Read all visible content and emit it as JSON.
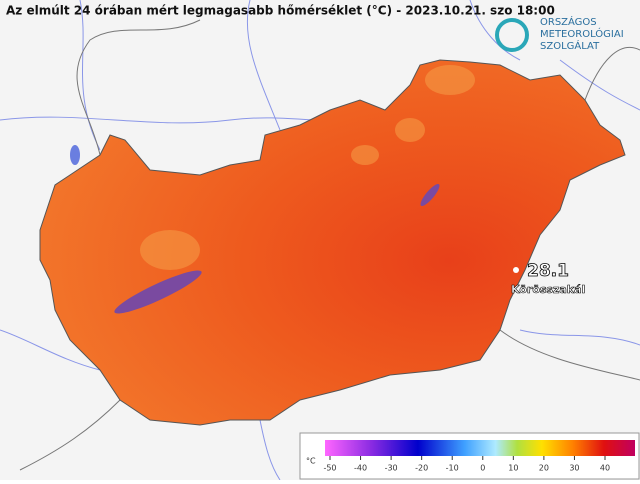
{
  "header": {
    "title": "Az elmúlt 24 órában mért legmagasabb hőmérséklet (°C) - 2023.10.21. szo 18:00"
  },
  "logo": {
    "lines": [
      "ORSZÁGOS",
      "METEOROLÓGIAI",
      "SZOLGÁLAT"
    ]
  },
  "marker": {
    "value": "28.1",
    "station": "Körösszakál"
  },
  "legend": {
    "unit": "°C",
    "ticks": [
      -50,
      -40,
      -30,
      -20,
      -10,
      0,
      10,
      20,
      30,
      40
    ]
  }
}
